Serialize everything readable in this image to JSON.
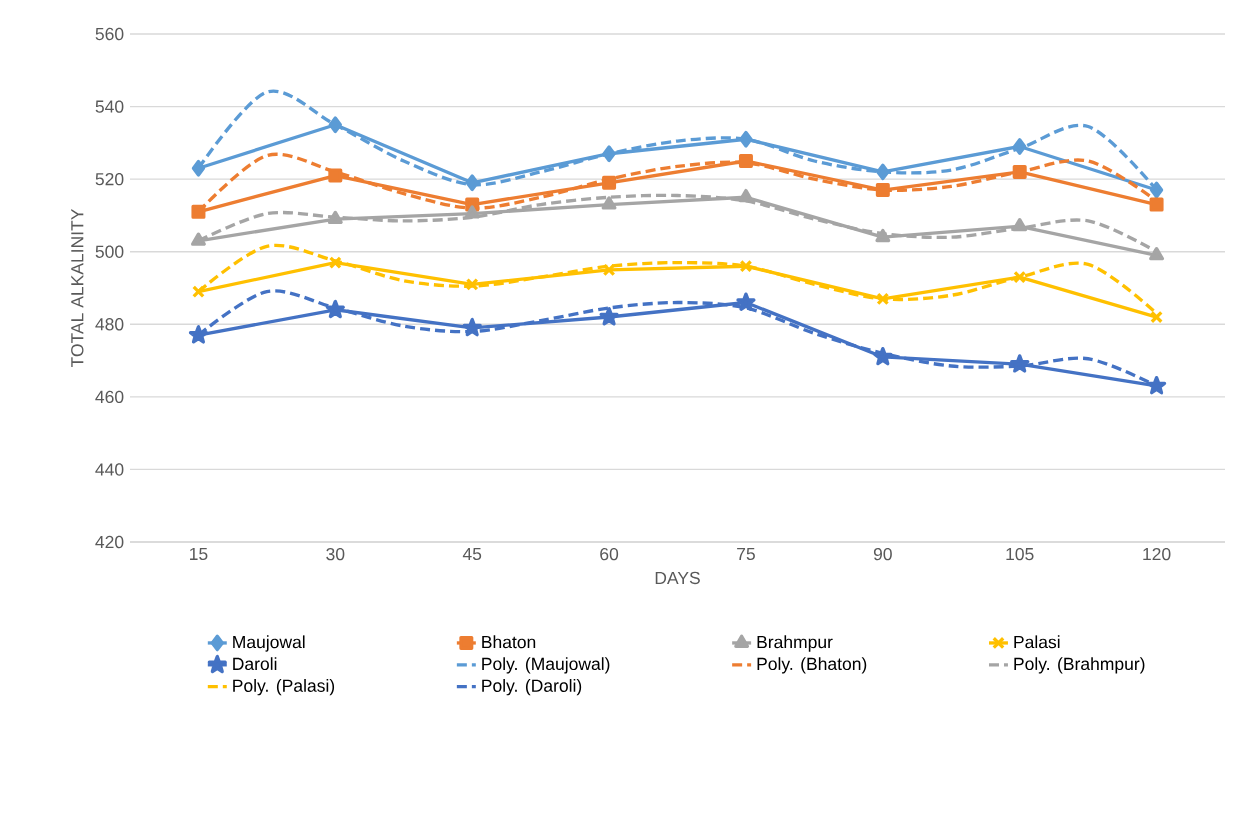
{
  "chart_data": {
    "type": "line",
    "xlabel": "DAYS",
    "ylabel": "TOTAL ALKALINITY",
    "x": [
      15,
      30,
      45,
      60,
      75,
      90,
      105,
      120
    ],
    "xlim": [
      7.5,
      127.5
    ],
    "xticks": [
      15,
      30,
      45,
      60,
      75,
      90,
      105,
      120
    ],
    "ylim": [
      420,
      560
    ],
    "yticks": [
      420,
      440,
      460,
      480,
      500,
      520,
      540,
      560
    ],
    "grid": "y",
    "legend": "bottom",
    "series": [
      {
        "name": "Maujowal",
        "color": "#5b9bd5",
        "marker": "diamond",
        "line_style": "solid",
        "values": [
          523,
          535,
          519,
          527,
          531,
          522,
          529,
          517
        ]
      },
      {
        "name": "Bhaton",
        "color": "#ed7d31",
        "marker": "square",
        "line_style": "solid",
        "values": [
          511,
          521,
          513,
          519,
          525,
          517,
          522,
          513
        ]
      },
      {
        "name": "Brahmpur",
        "color": "#a5a5a5",
        "marker": "triangle",
        "line_style": "solid",
        "values": [
          503,
          509,
          510.5,
          513,
          515,
          504,
          507,
          499
        ]
      },
      {
        "name": "Palasi",
        "color": "#ffc000",
        "marker": "cross",
        "line_style": "solid",
        "values": [
          489,
          497,
          491,
          495,
          496,
          487,
          493,
          482
        ]
      },
      {
        "name": "Daroli",
        "color": "#4472c4",
        "marker": "star",
        "line_style": "solid",
        "values": [
          477,
          484,
          479,
          482,
          486,
          471,
          469,
          463
        ]
      },
      {
        "name": "Poly. (Maujowal)",
        "type": "line",
        "color": "#5b9bd5",
        "marker": "none",
        "line_style": "dashed",
        "x": [
          15,
          22.5,
          30,
          37.5,
          45,
          52.5,
          60,
          67.5,
          75,
          82.5,
          90,
          97.5,
          105,
          112.5,
          120
        ],
        "values": [
          523,
          544,
          535,
          525,
          518.5,
          522,
          527,
          530.5,
          531,
          525,
          522,
          522.5,
          528.5,
          534.5,
          517
        ]
      },
      {
        "name": "Poly. (Bhaton)",
        "type": "line",
        "color": "#ed7d31",
        "marker": "none",
        "line_style": "dashed",
        "x": [
          15,
          22.5,
          30,
          37.5,
          45,
          52.5,
          60,
          67.5,
          75,
          82.5,
          90,
          97.5,
          105,
          112.5,
          120
        ],
        "values": [
          511,
          526.5,
          522,
          516,
          512,
          515,
          520,
          523.5,
          524.5,
          520,
          517,
          518,
          522,
          525,
          514
        ]
      },
      {
        "name": "Poly. (Brahmpur)",
        "type": "line",
        "color": "#a5a5a5",
        "marker": "none",
        "line_style": "dashed",
        "x": [
          15,
          22.5,
          30,
          37.5,
          45,
          52.5,
          60,
          67.5,
          75,
          82.5,
          90,
          97.5,
          105,
          112.5,
          120
        ],
        "values": [
          503,
          510.5,
          509.5,
          508.5,
          509.5,
          513,
          515,
          515.5,
          514,
          509,
          505,
          504,
          506.5,
          508.5,
          500
        ]
      },
      {
        "name": "Poly. (Palasi)",
        "type": "line",
        "color": "#ffc000",
        "marker": "none",
        "line_style": "dashed",
        "x": [
          15,
          22.5,
          30,
          37.5,
          45,
          52.5,
          60,
          67.5,
          75,
          82.5,
          90,
          97.5,
          105,
          112.5,
          120
        ],
        "values": [
          489,
          501.5,
          497.5,
          492,
          490.5,
          493,
          496,
          497,
          496,
          491,
          487,
          488,
          493,
          496.5,
          483
        ]
      },
      {
        "name": "Poly. (Daroli)",
        "type": "line",
        "color": "#4472c4",
        "marker": "none",
        "line_style": "dashed",
        "x": [
          15,
          22.5,
          30,
          37.5,
          45,
          52.5,
          60,
          67.5,
          75,
          82.5,
          90,
          97.5,
          105,
          112.5,
          120
        ],
        "values": [
          477,
          489,
          484.5,
          479.5,
          478,
          481,
          484.5,
          486,
          484.5,
          477.5,
          472,
          468.5,
          468.5,
          470.5,
          463
        ]
      }
    ]
  }
}
